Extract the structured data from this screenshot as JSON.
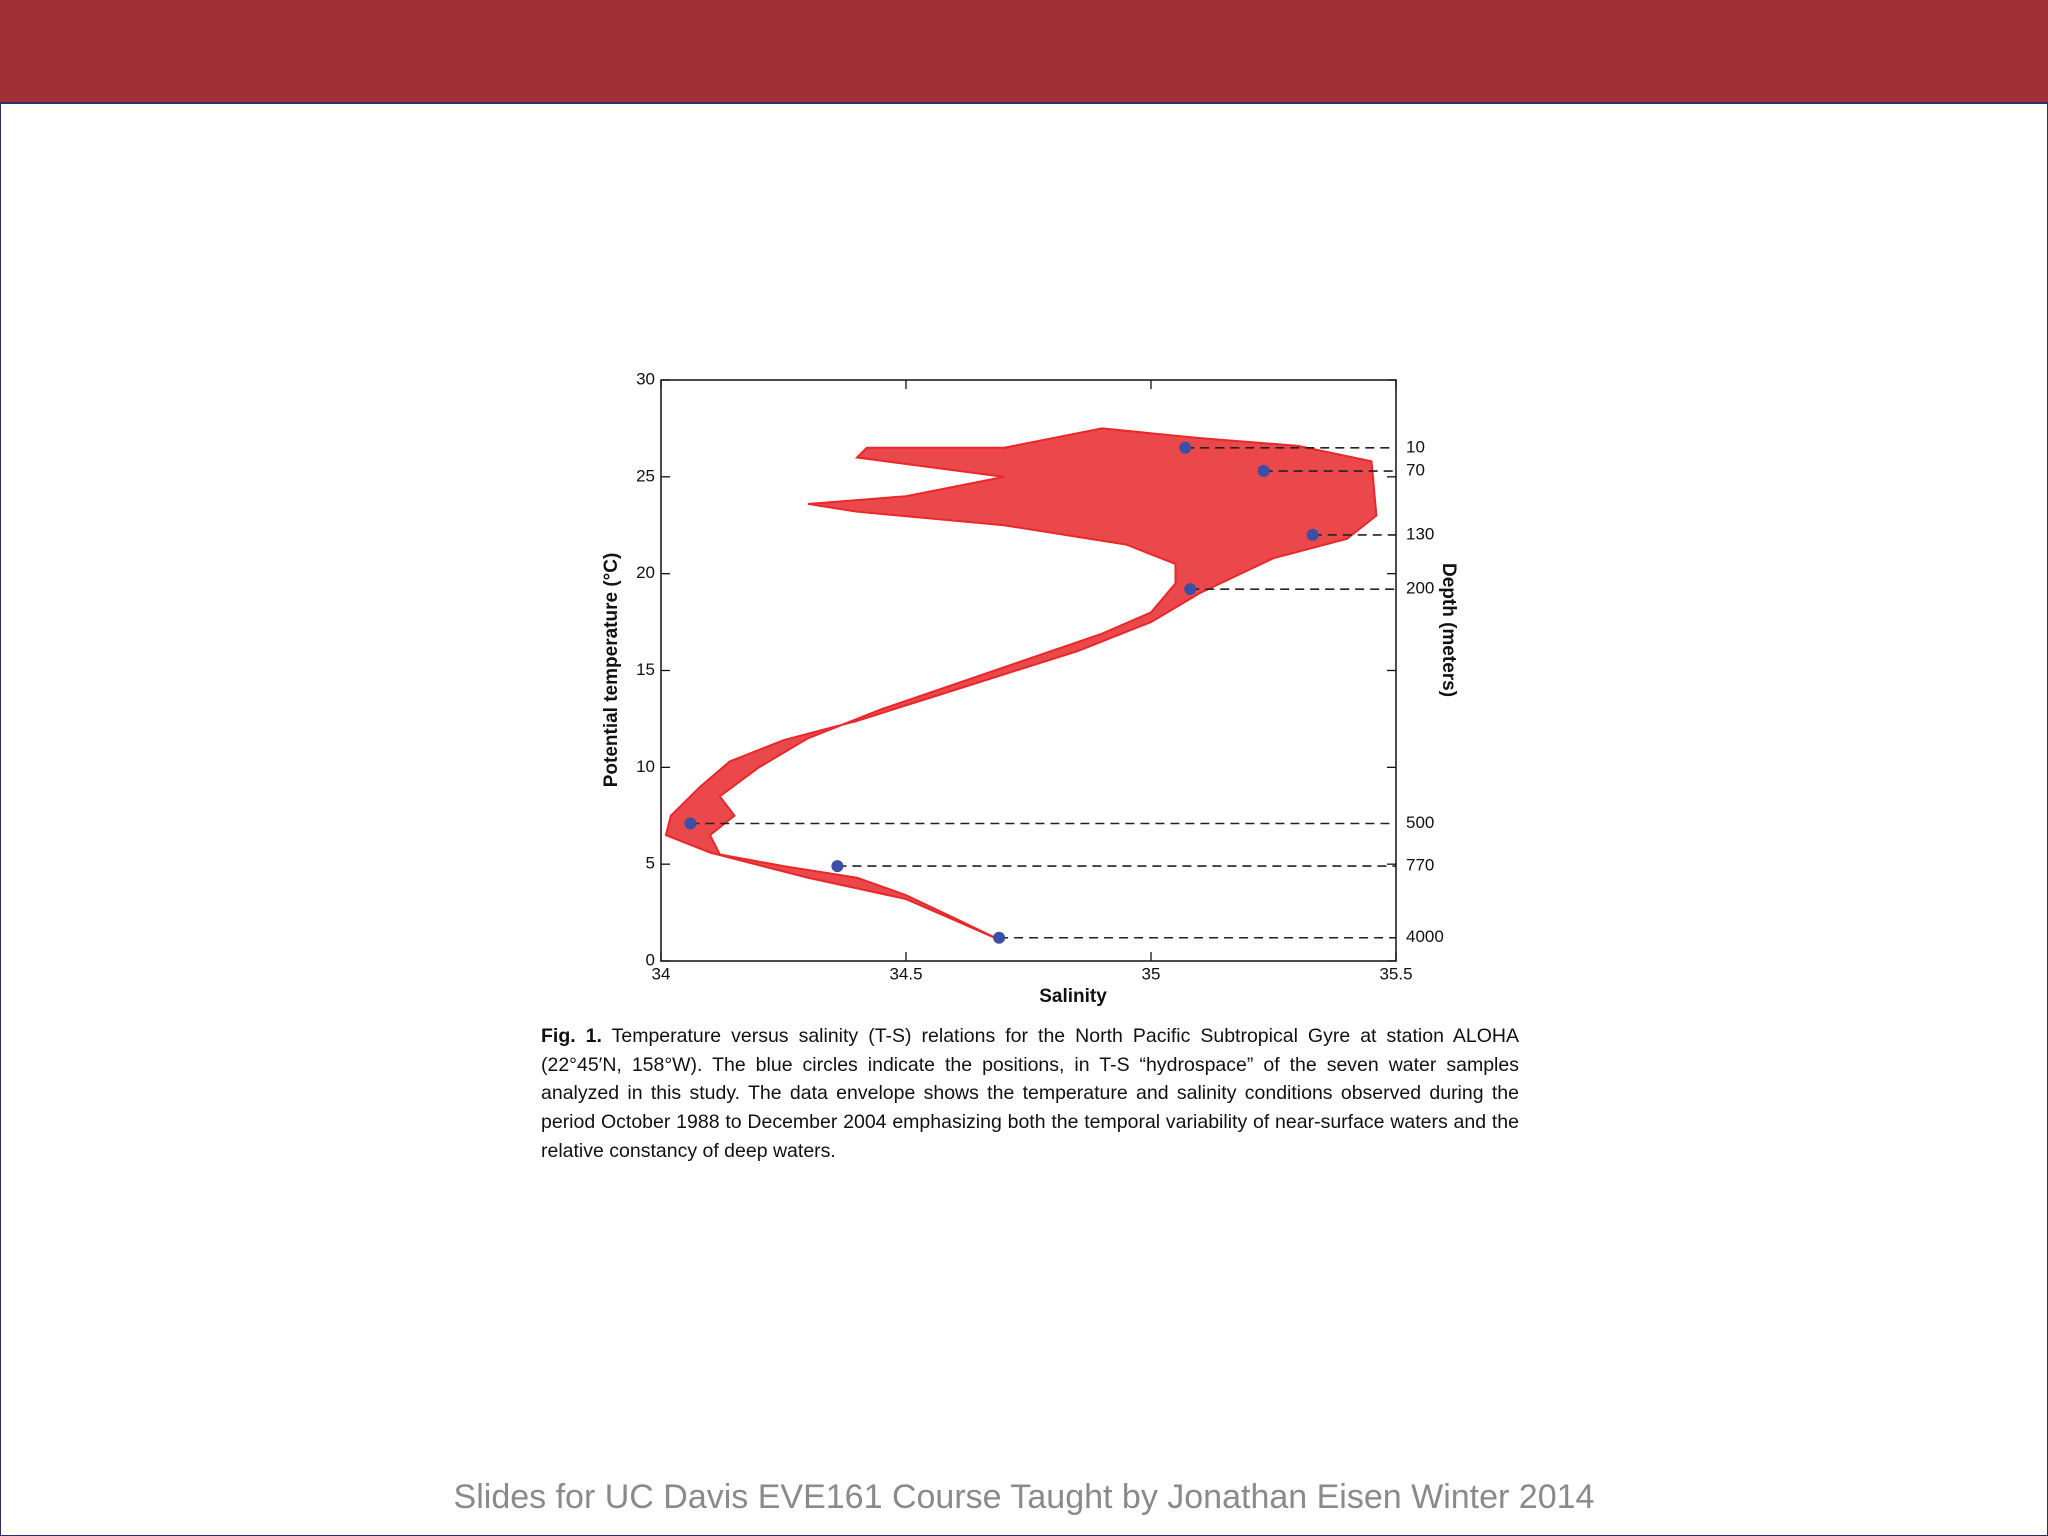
{
  "chart_data": {
    "type": "scatter",
    "xlabel": "Salinity",
    "ylabel": "Potential temperature (°C)",
    "y2label": "Depth (meters)",
    "xlim": [
      34,
      35.5
    ],
    "xticks": [
      34,
      34.5,
      35,
      35.5
    ],
    "ylim": [
      0,
      30
    ],
    "yticks": [
      0,
      5,
      10,
      15,
      20,
      25,
      30
    ],
    "envelope": {
      "color": "#e8282b",
      "x": [
        34.69,
        34.6,
        34.5,
        34.4,
        34.25,
        34.12,
        34.1,
        34.15,
        34.12,
        34.2,
        34.3,
        34.45,
        34.6,
        34.75,
        34.9,
        35.0,
        35.05,
        35.05,
        34.95,
        34.7,
        34.4,
        34.3,
        34.5,
        34.7,
        34.4,
        34.42,
        34.7,
        34.9,
        35.1,
        35.3,
        35.45,
        35.46,
        35.4,
        35.25,
        35.1,
        35.0,
        34.85,
        34.7,
        34.55,
        34.4,
        34.25,
        34.14,
        34.08,
        34.02,
        34.01,
        34.1,
        34.3,
        34.5,
        34.6
      ],
      "y": [
        1.1,
        2.2,
        3.4,
        4.3,
        4.9,
        5.5,
        6.5,
        7.5,
        8.5,
        10,
        11.5,
        13,
        14.3,
        15.6,
        16.9,
        18,
        19.5,
        20.5,
        21.5,
        22.5,
        23.2,
        23.6,
        24,
        25,
        26,
        26.5,
        26.5,
        27.5,
        27,
        26.6,
        25.8,
        23,
        21.8,
        20.8,
        19,
        17.5,
        16,
        14.8,
        13.6,
        12.4,
        11.4,
        10.3,
        9,
        7.5,
        6.5,
        5.6,
        4.3,
        3.2,
        2.1
      ]
    },
    "samples": {
      "color": "#3b4fa6",
      "x": [
        35.07,
        35.23,
        35.33,
        35.08,
        34.06,
        34.36,
        34.69
      ],
      "y": [
        26.5,
        25.3,
        22.0,
        19.2,
        7.1,
        4.9,
        1.2
      ],
      "depths": [
        10,
        70,
        130,
        200,
        500,
        770,
        4000
      ]
    }
  },
  "caption": {
    "label": "Fig. 1.",
    "text": "Temperature versus salinity (T-S) relations for the North Pacific Subtropical Gyre at station ALOHA (22°45′N, 158°W). The blue circles indicate the positions, in T-S “hydrospace” of the seven water samples analyzed in this study. The data envelope shows the temperature and salinity conditions observed during the period October 1988 to December 2004 emphasizing both the temporal variability of near-surface waters and the relative constancy of deep waters."
  },
  "footer": "Slides for UC Davis EVE161 Course Taught by Jonathan Eisen Winter 2014"
}
